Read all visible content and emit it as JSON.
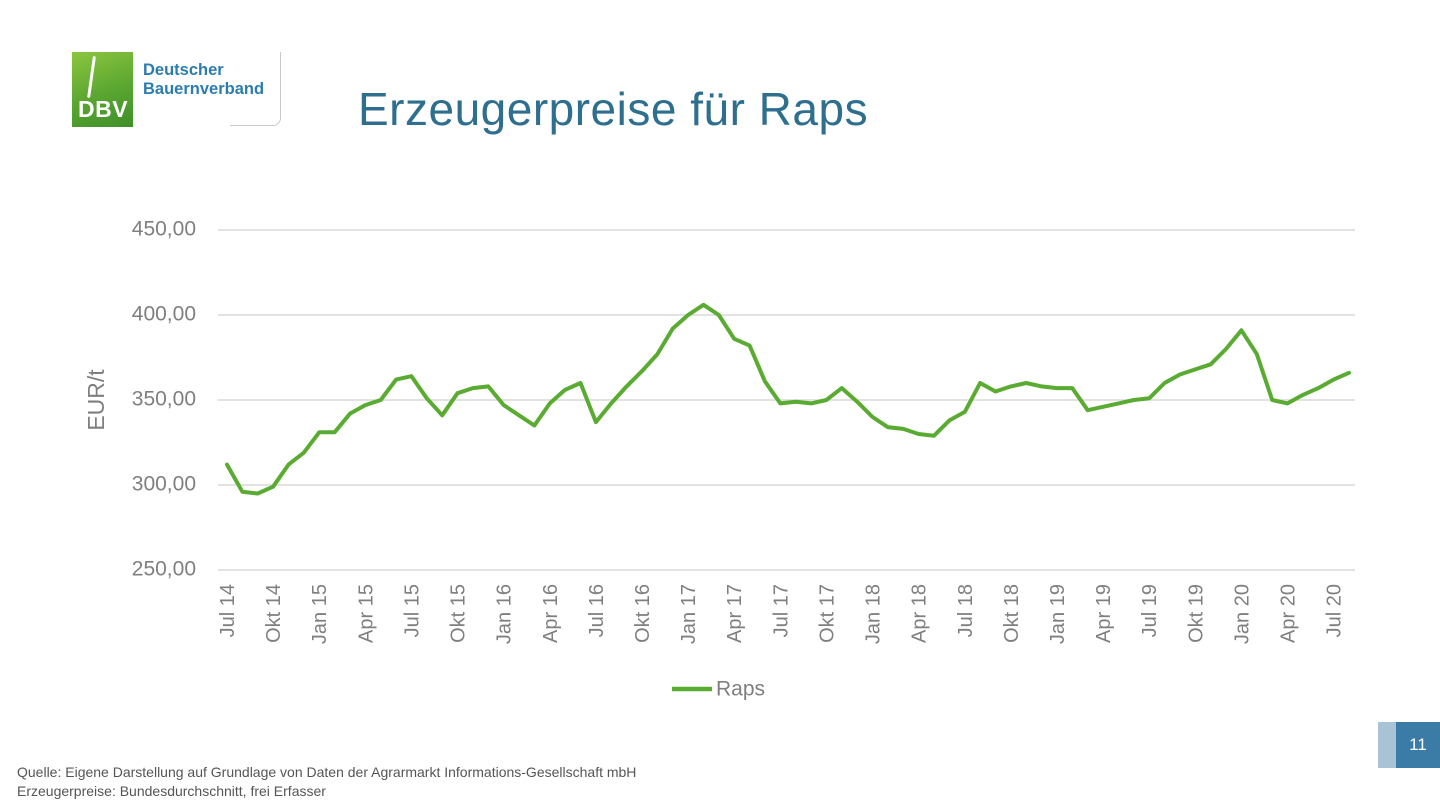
{
  "logo": {
    "abbr": "DBV",
    "name_line1": "Deutscher",
    "name_line2": "Bauernverband"
  },
  "title": "Erzeugerpreise für Raps",
  "footnote": {
    "line1": "Quelle: Eigene Darstellung auf Grundlage von Daten der Agrarmarkt Informations-Gesellschaft mbH",
    "line2": "Erzeugerpreise: Bundesdurchschnitt, frei Erfasser"
  },
  "page_number": "11",
  "colors": {
    "series": "#5aab32",
    "title": "#2e6e8e",
    "accent": "#3a7ca5"
  },
  "chart_data": {
    "type": "line",
    "title": "",
    "xlabel": "",
    "ylabel": "EUR/t",
    "ylim": [
      250,
      450
    ],
    "yticks": [
      250,
      300,
      350,
      400,
      450
    ],
    "ytick_labels": [
      "250,00",
      "300,00",
      "350,00",
      "400,00",
      "450,00"
    ],
    "grid": true,
    "legend": "bottom-center",
    "x": [
      "Jul 14",
      "Aug 14",
      "Sep 14",
      "Okt 14",
      "Nov 14",
      "Dez 14",
      "Jan 15",
      "Feb 15",
      "Mrz 15",
      "Apr 15",
      "Mai 15",
      "Jun 15",
      "Jul 15",
      "Aug 15",
      "Sep 15",
      "Okt 15",
      "Nov 15",
      "Dez 15",
      "Jan 16",
      "Feb 16",
      "Mrz 16",
      "Apr 16",
      "Mai 16",
      "Jun 16",
      "Jul 16",
      "Aug 16",
      "Sep 16",
      "Okt 16",
      "Nov 16",
      "Dez 16",
      "Jan 17",
      "Feb 17",
      "Mrz 17",
      "Apr 17",
      "Mai 17",
      "Jun 17",
      "Jul 17",
      "Aug 17",
      "Sep 17",
      "Okt 17",
      "Nov 17",
      "Dez 17",
      "Jan 18",
      "Feb 18",
      "Mrz 18",
      "Apr 18",
      "Mai 18",
      "Jun 18",
      "Jul 18",
      "Aug 18",
      "Sep 18",
      "Okt 18",
      "Nov 18",
      "Dez 18",
      "Jan 19",
      "Feb 19",
      "Mrz 19",
      "Apr 19",
      "Mai 19",
      "Jun 19",
      "Jul 19",
      "Aug 19",
      "Sep 19",
      "Okt 19",
      "Nov 19",
      "Dez 19",
      "Jan 20",
      "Feb 20",
      "Mrz 20",
      "Apr 20",
      "Mai 20",
      "Jun 20",
      "Jul 20",
      "Aug 20"
    ],
    "x_tick_labels": [
      "Jul 14",
      "Okt 14",
      "Jan 15",
      "Apr 15",
      "Jul 15",
      "Okt 15",
      "Jan 16",
      "Apr 16",
      "Jul 16",
      "Okt 16",
      "Jan 17",
      "Apr 17",
      "Jul 17",
      "Okt 17",
      "Jan 18",
      "Apr 18",
      "Jul 18",
      "Okt 18",
      "Jan 19",
      "Apr 19",
      "Jul 19",
      "Okt 19",
      "Jan 20",
      "Apr 20",
      "Jul 20"
    ],
    "series": [
      {
        "name": "Raps",
        "values": [
          312,
          296,
          295,
          299,
          312,
          319,
          331,
          331,
          342,
          347,
          350,
          362,
          364,
          351,
          341,
          354,
          357,
          358,
          347,
          341,
          335,
          348,
          356,
          360,
          337,
          348,
          358,
          367,
          377,
          392,
          400,
          406,
          400,
          386,
          382,
          361,
          348,
          349,
          348,
          350,
          357,
          349,
          340,
          334,
          333,
          330,
          329,
          338,
          343,
          360,
          355,
          358,
          360,
          358,
          357,
          357,
          344,
          346,
          348,
          350,
          351,
          360,
          365,
          368,
          371,
          380,
          391,
          377,
          350,
          348,
          353,
          357,
          362,
          366
        ]
      }
    ]
  }
}
